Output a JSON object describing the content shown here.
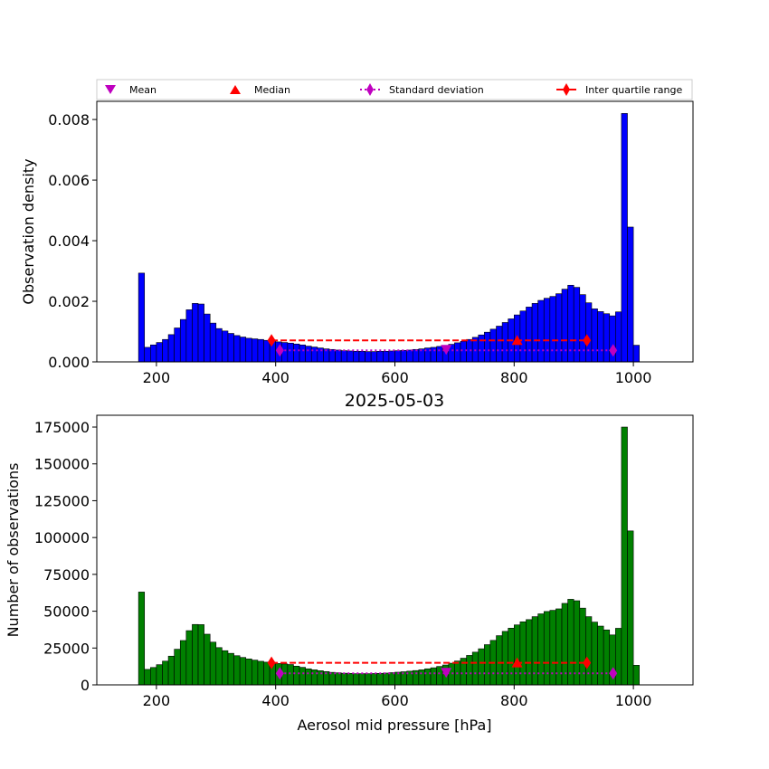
{
  "colors": {
    "density_bars": "#0000ff",
    "count_bars": "#008000",
    "mean": "#bf00bf",
    "median": "#ff0000",
    "std": "#bf00bf",
    "iqr": "#ff0000"
  },
  "legend": {
    "mean": "Mean",
    "median": "Median",
    "std": "Standard deviation",
    "iqr": "Inter quartile range"
  },
  "chart_data": [
    {
      "type": "bar",
      "name": "density",
      "title": "",
      "xlabel": "",
      "ylabel": "Observation density",
      "xlim": [
        100,
        1100
      ],
      "ylim": [
        0,
        0.0086
      ],
      "xticks": [
        200,
        400,
        600,
        800,
        1000
      ],
      "yticks": [
        "0.000",
        "0.002",
        "0.004",
        "0.006",
        "0.008"
      ],
      "yticks_values": [
        0,
        0.002,
        0.004,
        0.006,
        0.008
      ],
      "bin_start": 170,
      "bin_width": 10,
      "values": [
        0.00293,
        0.00048,
        0.00056,
        0.00064,
        0.00074,
        0.0009,
        0.00112,
        0.0014,
        0.00172,
        0.00193,
        0.00191,
        0.00158,
        0.00128,
        0.0011,
        0.00102,
        0.00094,
        0.00087,
        0.00082,
        0.00078,
        0.00076,
        0.00074,
        0.00071,
        0.00069,
        0.00066,
        0.00064,
        0.00062,
        0.00059,
        0.00056,
        0.00052,
        0.00049,
        0.00046,
        0.00043,
        0.00041,
        0.00039,
        0.00037,
        0.00036,
        0.00035,
        0.00035,
        0.00034,
        0.00034,
        0.00035,
        0.00035,
        0.00036,
        0.00037,
        0.00038,
        0.00039,
        0.00041,
        0.00043,
        0.00046,
        0.00048,
        0.00051,
        0.00054,
        0.00058,
        0.00063,
        0.00068,
        0.00074,
        0.00081,
        0.00089,
        0.00098,
        0.00108,
        0.00118,
        0.0013,
        0.00142,
        0.00155,
        0.00168,
        0.00181,
        0.00193,
        0.00203,
        0.0021,
        0.00216,
        0.00225,
        0.0024,
        0.00253,
        0.00246,
        0.00222,
        0.00195,
        0.00175,
        0.00166,
        0.00159,
        0.00152,
        0.00165,
        0.0082,
        0.00445,
        0.00055
      ],
      "mean": 686,
      "median": 805,
      "std_range": [
        407,
        966
      ],
      "std_y": 0.00038,
      "iqr_range": [
        393,
        922
      ],
      "iqr_y": 0.00071
    },
    {
      "type": "bar",
      "name": "counts",
      "title": "2025-05-03",
      "xlabel": "Aerosol mid pressure [hPa]",
      "ylabel": "Number of observations",
      "xlim": [
        100,
        1100
      ],
      "ylim": [
        0,
        183000
      ],
      "xticks": [
        200,
        400,
        600,
        800,
        1000
      ],
      "yticks": [
        "0",
        "25000",
        "50000",
        "75000",
        "100000",
        "125000",
        "150000",
        "175000"
      ],
      "yticks_values": [
        0,
        25000,
        50000,
        75000,
        100000,
        125000,
        150000,
        175000
      ],
      "bin_start": 170,
      "bin_width": 10,
      "values": [
        63000,
        10500,
        11800,
        13700,
        16100,
        19500,
        24200,
        30100,
        36800,
        41000,
        40900,
        34400,
        29000,
        25300,
        23200,
        21400,
        19800,
        18600,
        17600,
        16800,
        16000,
        15400,
        14900,
        14500,
        14200,
        13800,
        12700,
        11900,
        10900,
        10200,
        9600,
        9000,
        8500,
        8200,
        7900,
        7800,
        7600,
        7600,
        7600,
        7700,
        7800,
        8000,
        8300,
        8600,
        8900,
        9300,
        9700,
        10200,
        10900,
        11600,
        12500,
        13500,
        14700,
        16200,
        18100,
        20000,
        22200,
        24500,
        27300,
        30200,
        33400,
        36300,
        38500,
        40700,
        42800,
        44300,
        46300,
        48200,
        49800,
        50600,
        51600,
        55300,
        58100,
        57100,
        52100,
        46300,
        42600,
        39900,
        37300,
        33900,
        38400,
        175000,
        104500,
        13300
      ],
      "mean": 686,
      "median": 805,
      "std_range": [
        407,
        966
      ],
      "std_y": 7800,
      "iqr_range": [
        393,
        922
      ],
      "iqr_y": 15000
    }
  ]
}
